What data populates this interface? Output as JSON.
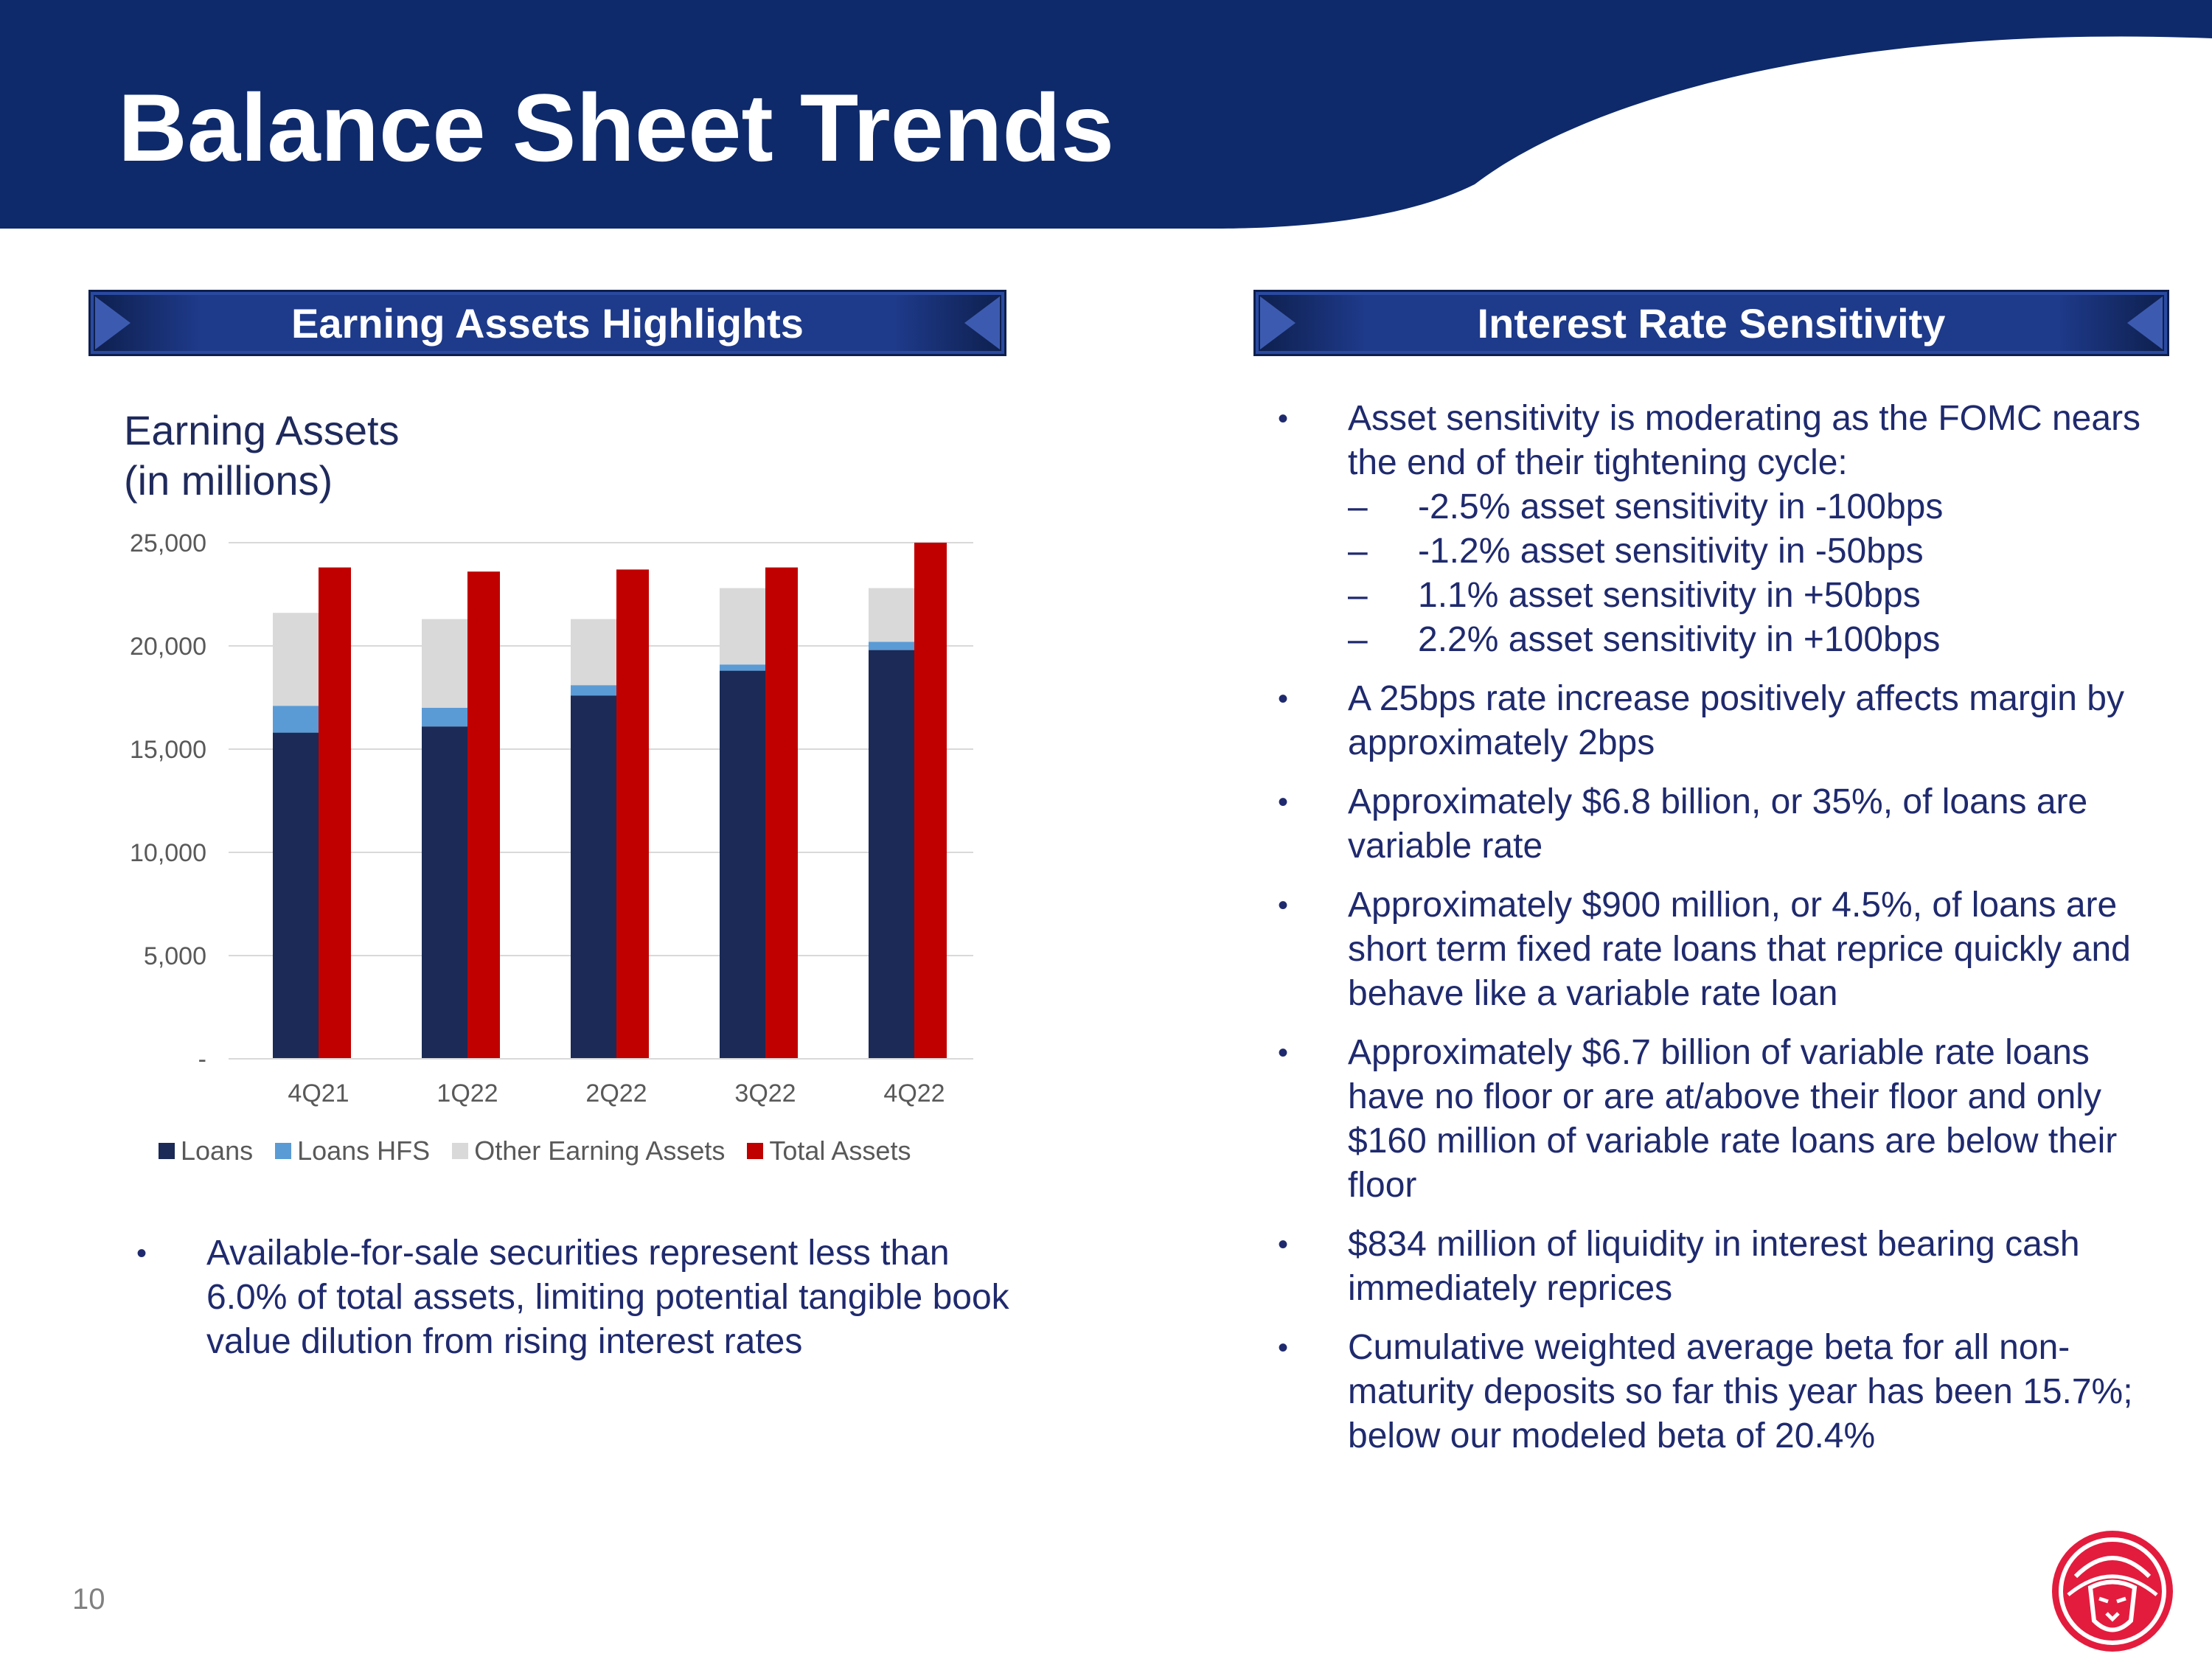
{
  "title": "Balance Sheet Trends",
  "colors": {
    "banner": "#0e2a6b",
    "accent": "#c00000",
    "text": "#1f2a6e",
    "logo": "#e31c3d"
  },
  "left_section": {
    "header": "Earning Assets Highlights",
    "chart_title_line1": "Earning Assets",
    "chart_title_line2": "(in millions)",
    "bullets": [
      "Available-for-sale securities represent less than 6.0% of total assets, limiting potential tangible book value dilution from rising interest rates"
    ]
  },
  "right_section": {
    "header": "Interest Rate Sensitivity",
    "bullets": [
      {
        "text": "Asset sensitivity is moderating as the FOMC nears the end of their tightening cycle:",
        "sub": [
          "-2.5% asset sensitivity in -100bps",
          "-1.2% asset sensitivity in -50bps",
          "1.1% asset sensitivity in +50bps",
          "2.2% asset sensitivity in +100bps"
        ]
      },
      {
        "text": "A 25bps rate increase positively affects margin by approximately 2bps"
      },
      {
        "text": "Approximately $6.8 billion, or 35%, of loans are variable rate"
      },
      {
        "text": "Approximately $900 million, or 4.5%, of loans are short term fixed rate loans that reprice quickly and behave like a variable rate loan"
      },
      {
        "text": "Approximately $6.7 billion of variable rate loans have no floor or are at/above their floor and only $160 million of variable rate loans are below their floor"
      },
      {
        "text": "$834 million of liquidity in interest bearing cash immediately reprices"
      },
      {
        "text": "Cumulative weighted average beta for all non-maturity deposits so far this year has been 15.7%; below our modeled beta of 20.4%"
      }
    ]
  },
  "chart_data": {
    "type": "bar",
    "title": "Earning Assets (in millions)",
    "categories": [
      "4Q21",
      "1Q22",
      "2Q22",
      "3Q22",
      "4Q22"
    ],
    "stacked_series": [
      {
        "name": "Loans",
        "color": "#1b2a56",
        "values": [
          15800,
          16100,
          17600,
          18800,
          19800
        ]
      },
      {
        "name": "Loans HFS",
        "color": "#5b9bd5",
        "values": [
          1300,
          900,
          500,
          300,
          400
        ]
      },
      {
        "name": "Other Earning Assets",
        "color": "#d9d9d9",
        "values": [
          4500,
          4300,
          3200,
          3700,
          2600
        ]
      }
    ],
    "side_series": {
      "name": "Total Assets",
      "color": "#c00000",
      "values": [
        23800,
        23600,
        23700,
        23800,
        25000
      ]
    },
    "ylim": [
      0,
      25000
    ],
    "yticks": [
      {
        "value": 0,
        "label": "-"
      },
      {
        "value": 5000,
        "label": "5,000"
      },
      {
        "value": 10000,
        "label": "10,000"
      },
      {
        "value": 15000,
        "label": "15,000"
      },
      {
        "value": 20000,
        "label": "20,000"
      },
      {
        "value": 25000,
        "label": "25,000"
      }
    ],
    "legend": [
      "Loans",
      "Loans HFS",
      "Other Earning Assets",
      "Total Assets"
    ],
    "legend_position": "bottom",
    "grid": true
  },
  "page_number": "10",
  "logo_icon": "lion-head-icon"
}
